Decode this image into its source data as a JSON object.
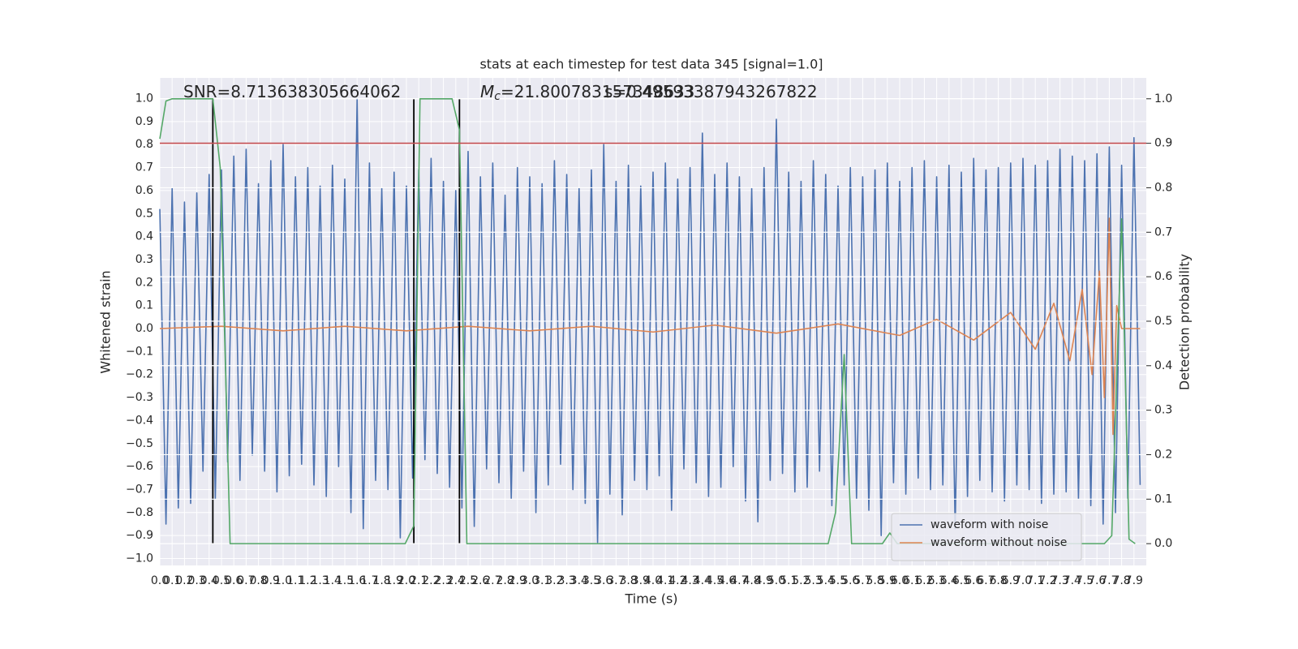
{
  "chart_data": {
    "type": "line",
    "title": "stats at each timestep for test data 345 [signal=1.0]",
    "xlabel": "Time (s)",
    "ylabel": "Whitened strain",
    "y2label": "Detection probability",
    "xlim": [
      0,
      8
    ],
    "ylim": [
      -1.03,
      1.09
    ],
    "y2lim": [
      -0.049,
      1.047
    ],
    "grid": true,
    "legend_loc": "lower right",
    "xticks": [
      {
        "value": 0,
        "label": "0.0"
      },
      0.1,
      0.2,
      0.3,
      0.4,
      0.5,
      0.6,
      0.7,
      0.8,
      0.9,
      {
        "value": 1,
        "label": "1.0"
      },
      1.1,
      1.2,
      1.3,
      1.4,
      1.5,
      1.6,
      1.7,
      1.8,
      1.9,
      {
        "value": 2,
        "label": "2.0"
      },
      2.1,
      2.2,
      2.3,
      2.4,
      2.5,
      2.6,
      2.7,
      2.8,
      2.9,
      {
        "value": 3,
        "label": "3.0"
      },
      3.1,
      3.2,
      3.3,
      3.4,
      3.5,
      3.6,
      3.7,
      3.8,
      3.9,
      {
        "value": 4,
        "label": "4.0"
      },
      4.1,
      4.2,
      4.3,
      4.4,
      4.5,
      4.6,
      4.7,
      4.8,
      4.9,
      {
        "value": 5,
        "label": "5.0"
      },
      5.1,
      5.2,
      5.3,
      5.4,
      5.5,
      5.6,
      5.7,
      5.8,
      5.9,
      {
        "value": 6,
        "label": "6.0"
      },
      6.1,
      6.2,
      6.3,
      6.4,
      6.5,
      6.6,
      6.7,
      6.8,
      6.9,
      {
        "value": 7,
        "label": "7.0"
      },
      7.1,
      7.2,
      7.3,
      7.4,
      7.5,
      7.6,
      7.7,
      7.8,
      7.9
    ],
    "yticks": [
      {
        "value": -1,
        "label": "−1.0"
      },
      {
        "value": -0.9,
        "label": "−0.9"
      },
      {
        "value": -0.8,
        "label": "−0.8"
      },
      {
        "value": -0.7,
        "label": "−0.7"
      },
      {
        "value": -0.6,
        "label": "−0.6"
      },
      {
        "value": -0.5,
        "label": "−0.5"
      },
      {
        "value": -0.4,
        "label": "−0.4"
      },
      {
        "value": -0.3,
        "label": "−0.3"
      },
      {
        "value": -0.2,
        "label": "−0.2"
      },
      {
        "value": -0.1,
        "label": "−0.1"
      },
      {
        "value": 0,
        "label": "0.0"
      },
      0.1,
      0.2,
      0.3,
      0.4,
      0.5,
      0.6,
      0.7,
      0.8,
      0.9,
      {
        "value": 1,
        "label": "1.0"
      }
    ],
    "y2ticks": [
      {
        "value": 0,
        "label": "0.0"
      },
      0.1,
      0.2,
      0.3,
      0.4,
      0.5,
      0.6,
      0.7,
      0.8,
      0.9,
      {
        "value": 1,
        "label": "1.0"
      }
    ],
    "series": [
      {
        "name": "waveform with noise",
        "color": "#4c72b0",
        "x": [
          0,
          0.05,
          0.1,
          0.15,
          0.2,
          0.25,
          0.3,
          0.35,
          0.4,
          0.45,
          0.5,
          0.55,
          0.6,
          0.65,
          0.7,
          0.75,
          0.8,
          0.85,
          0.9,
          0.95,
          1,
          1.05,
          1.1,
          1.15,
          1.2,
          1.25,
          1.3,
          1.35,
          1.4,
          1.45,
          1.5,
          1.55,
          1.6,
          1.65,
          1.7,
          1.75,
          1.8,
          1.85,
          1.9,
          1.95,
          2,
          2.05,
          2.1,
          2.15,
          2.2,
          2.25,
          2.3,
          2.35,
          2.4,
          2.45,
          2.5,
          2.55,
          2.6,
          2.65,
          2.7,
          2.75,
          2.8,
          2.85,
          2.9,
          2.95,
          3,
          3.05,
          3.1,
          3.15,
          3.2,
          3.25,
          3.3,
          3.35,
          3.4,
          3.45,
          3.5,
          3.55,
          3.6,
          3.65,
          3.7,
          3.75,
          3.8,
          3.85,
          3.9,
          3.95,
          4,
          4.05,
          4.1,
          4.15,
          4.2,
          4.25,
          4.3,
          4.35,
          4.4,
          4.45,
          4.5,
          4.55,
          4.6,
          4.65,
          4.7,
          4.75,
          4.8,
          4.85,
          4.9,
          4.95,
          5,
          5.05,
          5.1,
          5.15,
          5.2,
          5.25,
          5.3,
          5.35,
          5.4,
          5.45,
          5.5,
          5.55,
          5.6,
          5.65,
          5.7,
          5.75,
          5.8,
          5.85,
          5.9,
          5.95,
          6,
          6.05,
          6.1,
          6.15,
          6.2,
          6.25,
          6.3,
          6.35,
          6.4,
          6.45,
          6.5,
          6.55,
          6.6,
          6.65,
          6.7,
          6.75,
          6.8,
          6.85,
          6.9,
          6.95,
          7,
          7.05,
          7.1,
          7.15,
          7.2,
          7.25,
          7.3,
          7.35,
          7.4,
          7.45,
          7.5,
          7.55,
          7.6,
          7.65,
          7.7,
          7.75,
          7.8,
          7.85,
          7.9,
          7.95
        ],
        "values": [
          0.52,
          -0.85,
          0.61,
          -0.78,
          0.55,
          -0.76,
          0.59,
          -0.62,
          0.67,
          -0.74,
          0.69,
          -0.58,
          0.75,
          -0.66,
          0.78,
          -0.55,
          0.63,
          -0.62,
          0.73,
          -0.71,
          0.8,
          -0.64,
          0.66,
          -0.59,
          0.7,
          -0.68,
          0.62,
          -0.73,
          0.71,
          -0.6,
          0.65,
          -0.8,
          1.0,
          -0.87,
          0.72,
          -0.66,
          0.61,
          -0.7,
          0.68,
          -0.91,
          0.62,
          -0.65,
          0.69,
          -0.57,
          0.74,
          -0.63,
          0.64,
          -0.69,
          0.6,
          -0.78,
          0.77,
          -0.86,
          0.66,
          -0.61,
          0.72,
          -0.67,
          0.58,
          -0.74,
          0.7,
          -0.62,
          0.66,
          -0.8,
          0.63,
          -0.68,
          0.73,
          -0.59,
          0.67,
          -0.7,
          0.61,
          -0.76,
          0.69,
          -0.93,
          0.8,
          -0.72,
          0.64,
          -0.81,
          0.71,
          -0.66,
          0.62,
          -0.7,
          0.68,
          -0.64,
          0.72,
          -0.79,
          0.65,
          -0.61,
          0.7,
          -0.67,
          0.85,
          -0.73,
          0.67,
          -0.69,
          0.72,
          -0.6,
          0.66,
          -0.75,
          0.61,
          -0.84,
          0.7,
          -0.66,
          0.91,
          -0.63,
          0.68,
          -0.71,
          0.64,
          -0.69,
          0.73,
          -0.62,
          0.67,
          -0.77,
          0.62,
          -0.68,
          0.7,
          -0.74,
          0.66,
          -0.79,
          0.69,
          -0.9,
          0.72,
          -0.67,
          0.64,
          -0.72,
          0.7,
          -0.65,
          0.73,
          -0.7,
          0.66,
          -0.68,
          0.71,
          -0.87,
          0.68,
          -0.73,
          0.74,
          -0.66,
          0.69,
          -0.71,
          0.7,
          -0.75,
          0.72,
          -0.68,
          0.74,
          -0.7,
          0.71,
          -0.76,
          0.73,
          -0.72,
          0.78,
          -0.71,
          0.75,
          -0.74,
          0.73,
          -0.77,
          0.76,
          -0.85,
          0.79,
          -0.8,
          0.71,
          -0.74,
          0.83,
          -0.68
        ]
      },
      {
        "name": "waveform without noise",
        "color": "#dd8452",
        "x": [
          0,
          0.5,
          1,
          1.5,
          2,
          2.5,
          3,
          3.5,
          4,
          4.5,
          5,
          5.5,
          6,
          6.3,
          6.6,
          6.9,
          7.1,
          7.25,
          7.38,
          7.48,
          7.56,
          7.62,
          7.66,
          7.7,
          7.73,
          7.76,
          7.8,
          7.95
        ],
        "values": [
          0,
          0.01,
          -0.01,
          0.01,
          -0.01,
          0.01,
          -0.01,
          0.01,
          -0.015,
          0.015,
          -0.02,
          0.02,
          -0.03,
          0.04,
          -0.05,
          0.07,
          -0.09,
          0.11,
          -0.14,
          0.17,
          -0.2,
          0.25,
          -0.3,
          0.48,
          -0.46,
          0.1,
          0,
          0
        ]
      },
      {
        "color": "#55a868",
        "axis": "y2",
        "x": [
          0,
          0.05,
          0.1,
          0.43,
          0.49,
          0.55,
          0.57,
          1.99,
          2.06,
          2.11,
          2.37,
          2.43,
          2.49,
          5.42,
          5.48,
          5.55,
          5.61,
          5.86,
          5.92,
          5.98,
          7.66,
          7.72,
          7.8,
          7.86,
          7.91
        ],
        "values": [
          0.91,
          0.995,
          1,
          1,
          0.845,
          0.21,
          0,
          0,
          0.04,
          1,
          1,
          0.93,
          0,
          0,
          0.07,
          0.425,
          0,
          0,
          0.024,
          0,
          0,
          0.018,
          0.73,
          0.01,
          0
        ]
      }
    ],
    "hlines": [
      {
        "value": 0.9,
        "axis": "y2",
        "color": "#c44e52"
      }
    ],
    "vlines": [
      {
        "x": 0.43,
        "ymin": 0,
        "ymax": 1,
        "axis": "y2",
        "color": "#000000"
      },
      {
        "x": 2.06,
        "ymin": 0,
        "ymax": 1,
        "axis": "y2",
        "color": "#000000"
      },
      {
        "x": 2.43,
        "ymin": 0,
        "ymax": 1,
        "axis": "y2",
        "color": "#000000"
      }
    ],
    "annotations": [
      {
        "text": "SNR=8.713638305664062"
      },
      {
        "symbol": "M",
        "subscript": "c",
        "text": "=21.800783157348633"
      },
      {
        "text": "s=0.49593387943267822"
      }
    ]
  }
}
